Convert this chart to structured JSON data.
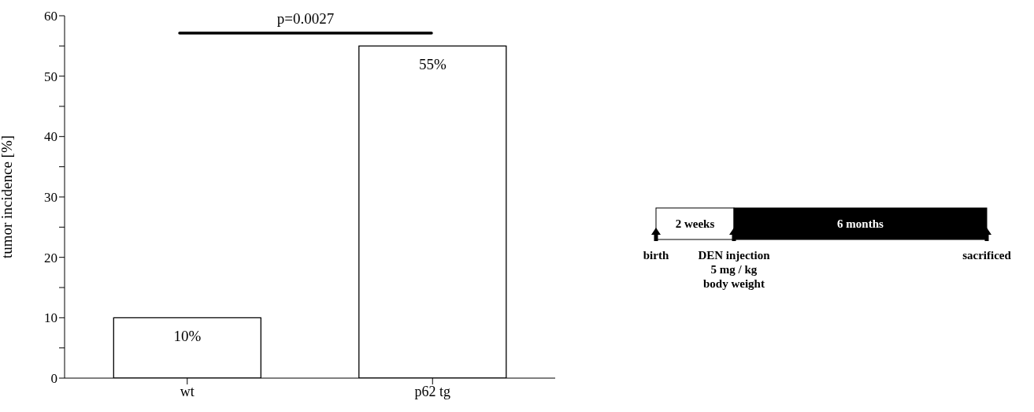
{
  "chart_data": [
    {
      "type": "bar",
      "ylabel": "tumor incidence [%]",
      "categories": [
        "wt",
        "p62 tg"
      ],
      "values": [
        10,
        55
      ],
      "color": "#ffffff",
      "value_labels": [
        "10%",
        "55%"
      ],
      "ylim": [
        0,
        60
      ],
      "yticks": [
        0,
        {
          "value": 5,
          "label": null
        },
        10,
        {
          "value": 15,
          "label": null
        },
        20,
        {
          "value": 25,
          "label": null
        },
        30,
        {
          "value": 35,
          "label": null
        },
        40,
        {
          "value": 45,
          "label": null
        },
        50,
        {
          "value": 55,
          "label": null
        },
        60
      ],
      "grid": false,
      "annotations": [
        "p=0.0027"
      ]
    },
    {
      "type": "other",
      "annotations": [
        "2 weeks",
        "6 months",
        "birth",
        "DEN injection\n5 mg / kg\nbody weight",
        "sacrificed"
      ]
    }
  ]
}
